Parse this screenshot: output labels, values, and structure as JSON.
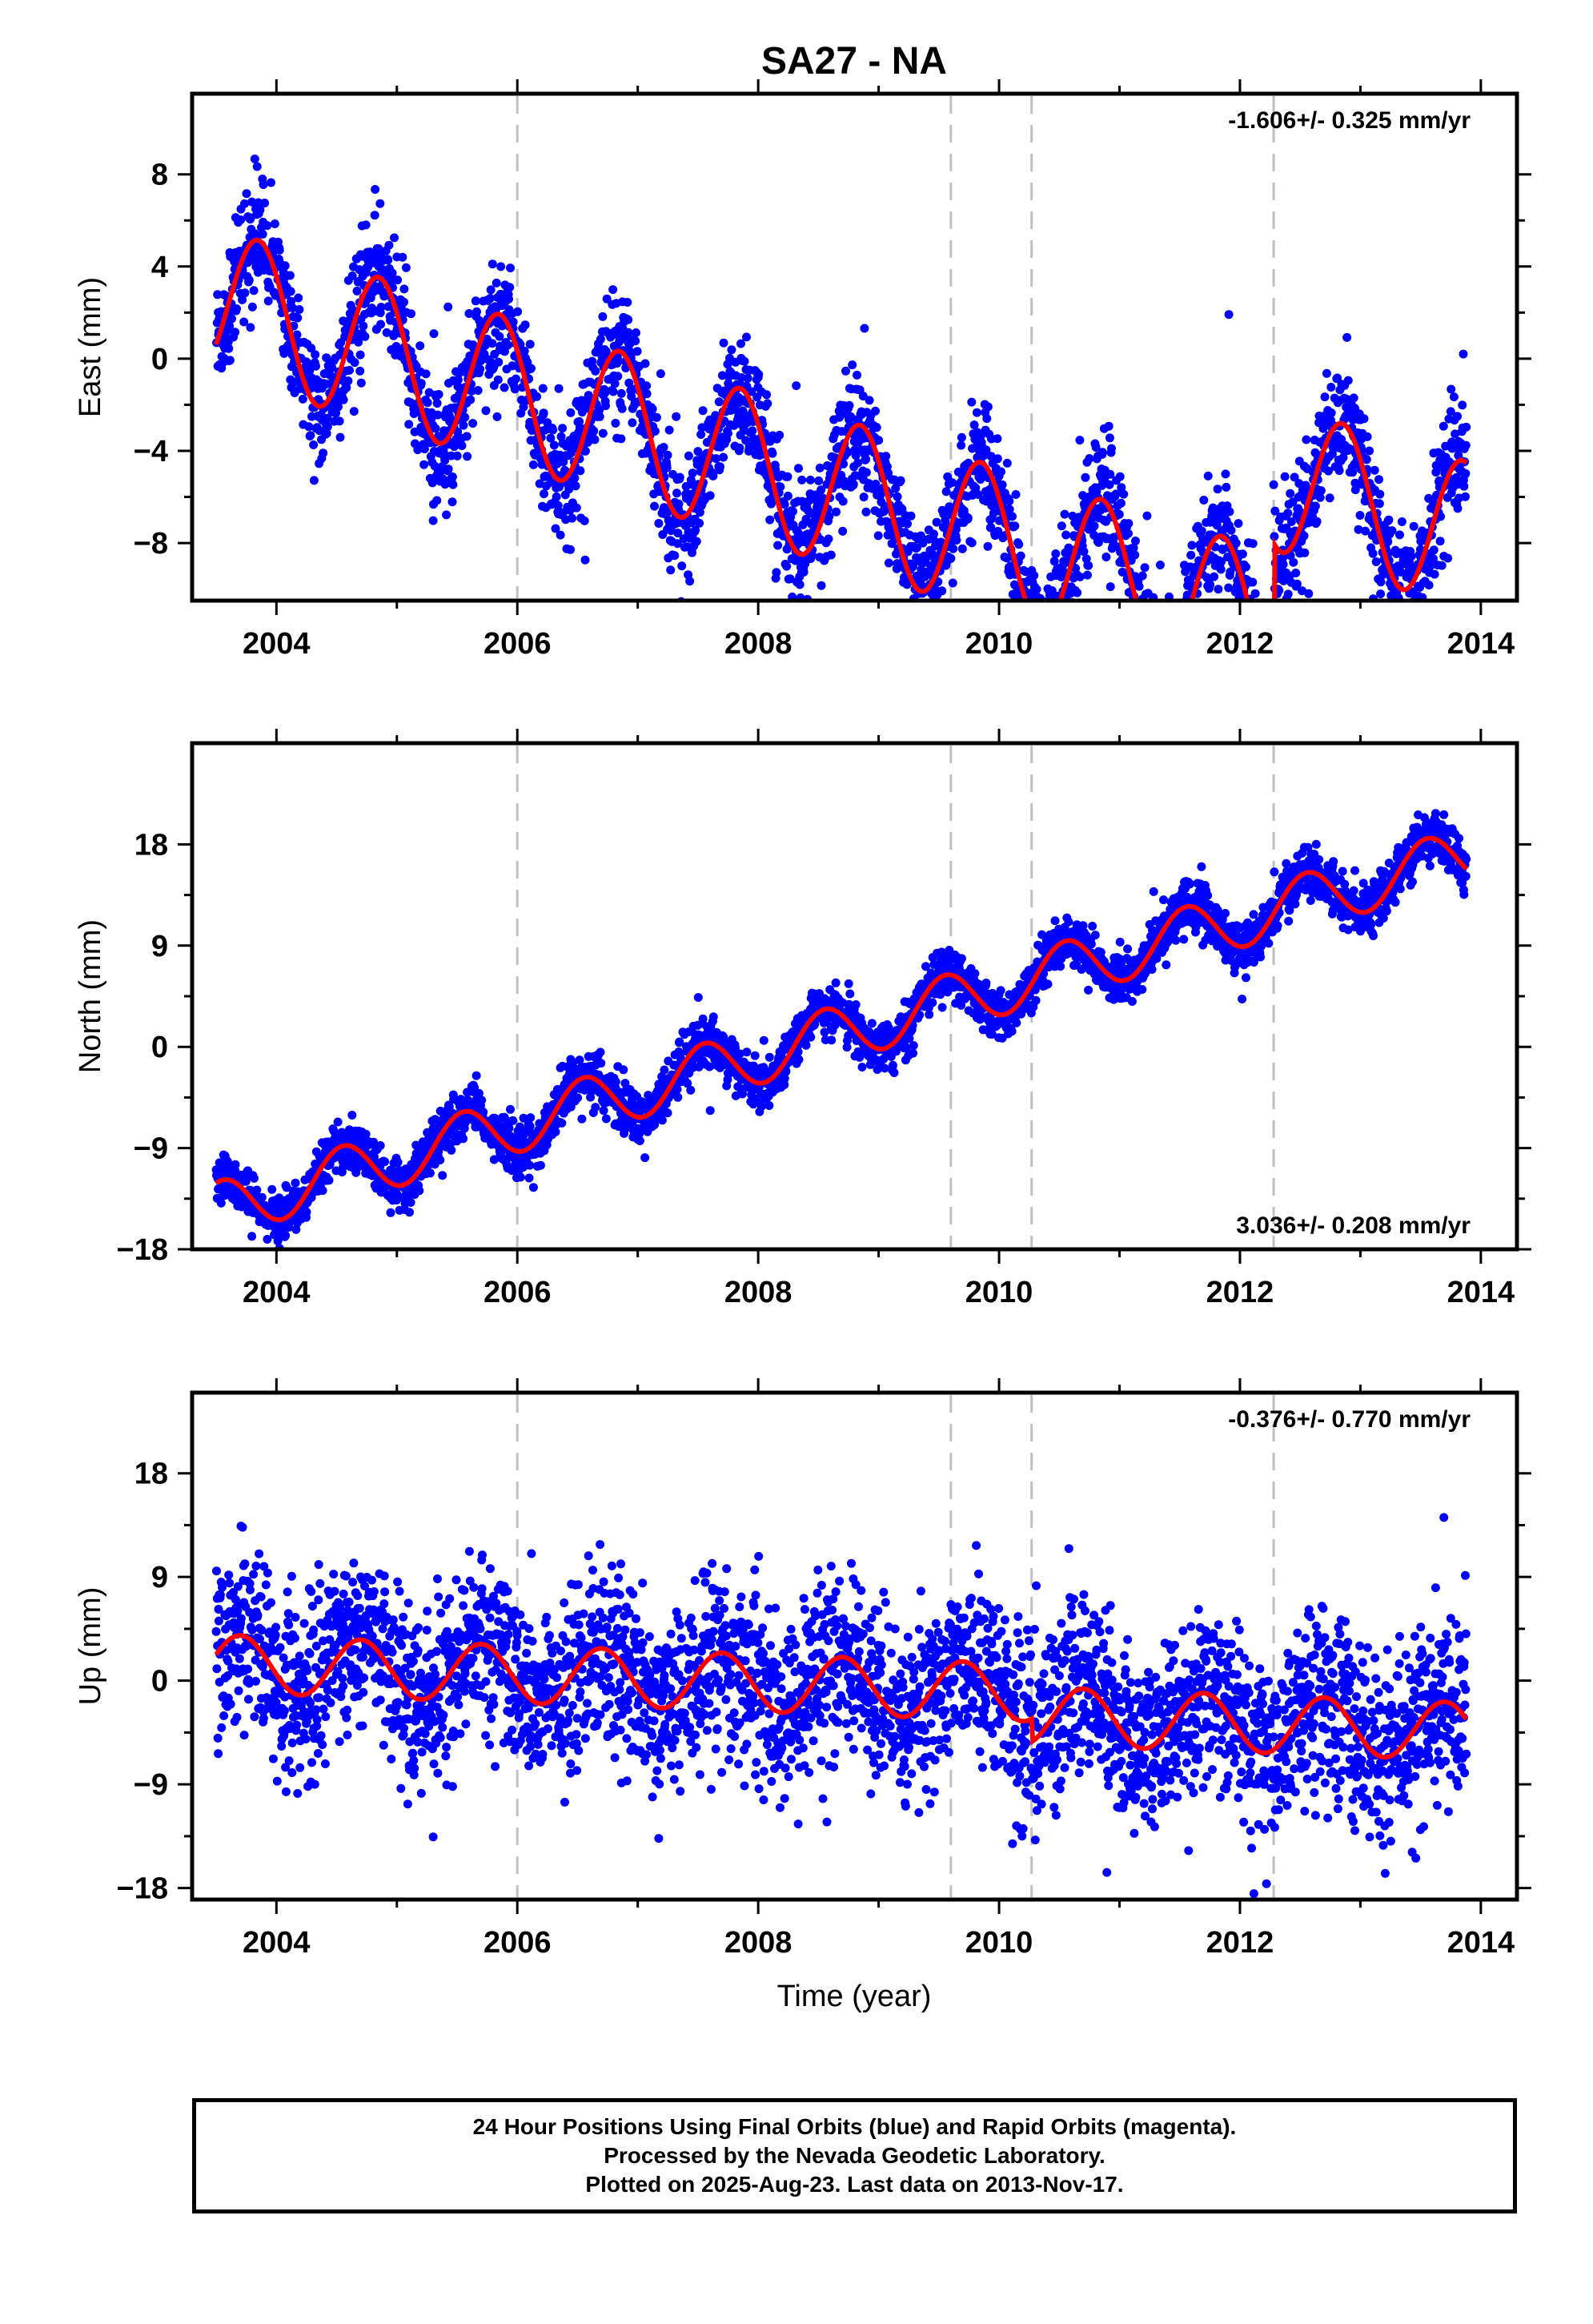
{
  "title": "SA27 - NA",
  "xlabel": "Time (year)",
  "colors": {
    "data_points": "#0000ff",
    "model_line": "#ff0000",
    "break_lines": "#c0c0c0",
    "axes": "#000000"
  },
  "footer": {
    "line1": "24 Hour Positions Using Final Orbits (blue) and Rapid Orbits (magenta).",
    "line2": "Processed by the Nevada Geodetic Laboratory.",
    "line3": "Plotted on 2025-Aug-23. Last data on 2013-Nov-17."
  },
  "chart_data": [
    {
      "type": "scatter",
      "ylabel": "East (mm)",
      "rate_label": "-1.606+/- 0.325 mm/yr",
      "rate_position": "top-right",
      "xlim": [
        2003.3,
        2014.3
      ],
      "ylim": [
        -10.5,
        11.5
      ],
      "x_ticks": [
        "2004",
        "2006",
        "2008",
        "2010",
        "2012",
        "2014"
      ],
      "y_ticks": [
        -8,
        -4,
        0,
        4,
        8
      ],
      "y_tick_labels": [
        "−8",
        "−4",
        "0",
        "4",
        "8"
      ],
      "break_lines_x": [
        2006.0,
        2009.6,
        2010.27,
        2012.28
      ],
      "data_span": [
        2003.5,
        2013.88
      ],
      "model": {
        "trend_start": 2.5,
        "rate": -1.606,
        "seasonal_amp": 3.2,
        "seasonal_phase_year": 0.85,
        "steps": [
          {
            "x": 2012.28,
            "dy": 6.5
          }
        ],
        "scatter": 1.3
      }
    },
    {
      "type": "scatter",
      "ylabel": "North (mm)",
      "rate_label": "3.036+/- 0.208 mm/yr",
      "rate_position": "bottom-right",
      "xlim": [
        2003.3,
        2014.3
      ],
      "ylim": [
        -18,
        27
      ],
      "x_ticks": [
        "2004",
        "2006",
        "2008",
        "2010",
        "2012",
        "2014"
      ],
      "y_ticks": [
        -18,
        -9,
        0,
        9,
        18
      ],
      "y_tick_labels": [
        "−18",
        "−9",
        "0",
        "9",
        "18"
      ],
      "break_lines_x": [
        2006.0,
        2009.6,
        2010.27,
        2012.28
      ],
      "data_span": [
        2003.5,
        2013.88
      ],
      "model": {
        "trend_start": -14.5,
        "rate": 3.036,
        "seasonal_amp": 2.5,
        "seasonal_phase_year": 0.55,
        "steps": [],
        "scatter": 1.1
      }
    },
    {
      "type": "scatter",
      "ylabel": "Up (mm)",
      "rate_label": "-0.376+/- 0.770 mm/yr",
      "rate_position": "top-right",
      "xlim": [
        2003.3,
        2014.3
      ],
      "ylim": [
        -19,
        25
      ],
      "x_ticks": [
        "2004",
        "2006",
        "2008",
        "2010",
        "2012",
        "2014"
      ],
      "y_ticks": [
        -18,
        -9,
        0,
        9,
        18
      ],
      "y_tick_labels": [
        "−18",
        "−9",
        "0",
        "9",
        "18"
      ],
      "break_lines_x": [
        2006.0,
        2009.6,
        2010.27,
        2012.28
      ],
      "data_span": [
        2003.5,
        2013.88
      ],
      "model": {
        "trend_start": 1.5,
        "rate": -0.376,
        "seasonal_amp": 2.5,
        "seasonal_phase_year": 0.7,
        "steps": [
          {
            "x": 2010.27,
            "dy": -2.0
          }
        ],
        "scatter": 3.8
      }
    }
  ]
}
